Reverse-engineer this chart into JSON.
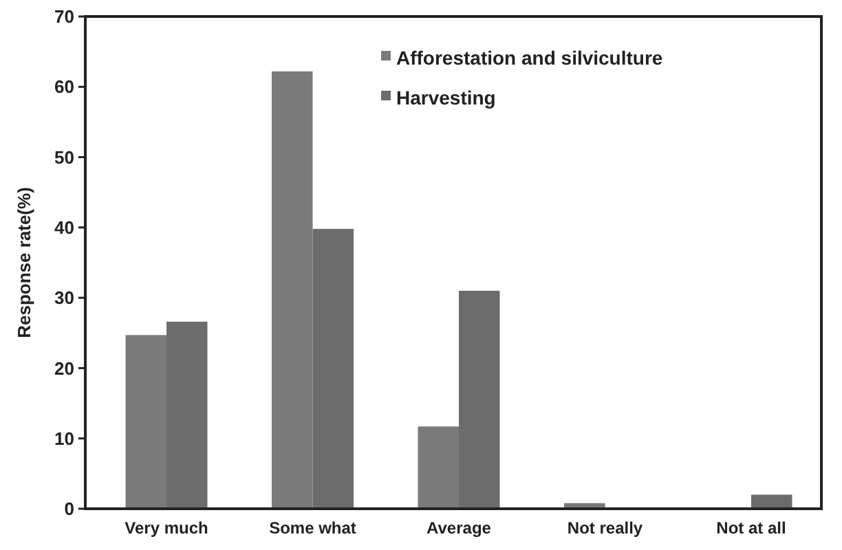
{
  "chart_data": {
    "type": "bar",
    "ylabel": "Response rate(%)",
    "categories": [
      "Very much",
      "Some what",
      "Average",
      "Not really",
      "Not at all"
    ],
    "series": [
      {
        "name": "Afforestation and silviculture",
        "color": "#7a7a7a",
        "values": [
          24.7,
          62.2,
          11.7,
          0.8,
          0
        ]
      },
      {
        "name": "Harvesting",
        "color": "#6c6c6c",
        "values": [
          26.6,
          39.8,
          31.0,
          0,
          2.0
        ]
      }
    ],
    "ylim": [
      0,
      70
    ],
    "yticks": [
      0,
      10,
      20,
      30,
      40,
      50,
      60,
      70
    ],
    "grid": false,
    "legend": "top right"
  }
}
